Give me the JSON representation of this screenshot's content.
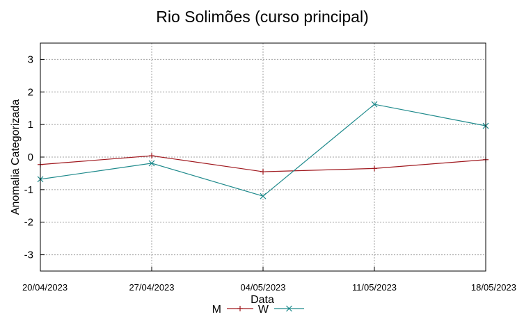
{
  "chart_data": {
    "type": "line",
    "title": "Rio Solimões (curso principal)",
    "xlabel": "Data",
    "ylabel": "Anomalia Categorizada",
    "x": [
      "20/04/2023",
      "27/04/2023",
      "04/05/2023",
      "11/05/2023",
      "18/05/2023"
    ],
    "yticks": [
      "3",
      "2",
      "1",
      "0",
      "-1",
      "-2",
      "-3"
    ],
    "ylim": [
      -3.5,
      3.5
    ],
    "grid": true,
    "legend_position": "bottom",
    "series": [
      {
        "name": "M",
        "color": "#a0191f",
        "marker": "plus",
        "values": [
          -0.23,
          0.04,
          -0.45,
          -0.35,
          -0.08
        ]
      },
      {
        "name": "W",
        "color": "#1f8a8c",
        "marker": "cross",
        "values": [
          -0.68,
          -0.19,
          -1.2,
          1.62,
          0.96
        ]
      }
    ]
  }
}
